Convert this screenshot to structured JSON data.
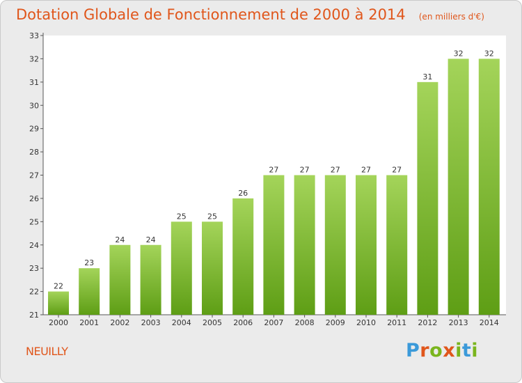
{
  "title": "Dotation Globale de Fonctionnement de 2000 à 2014",
  "unit_note": "(en milliers d'€)",
  "place_name": "NEUILLY",
  "brand": {
    "text": "Proxiti",
    "letter_colors": [
      "#3b9ad9",
      "#e0561b",
      "#7ab51d",
      "#e0561b",
      "#7ab51d",
      "#3b9ad9",
      "#7ab51d"
    ]
  },
  "colors": {
    "title": "#e0561b",
    "bar_light": "#a4d45a",
    "bar_dark": "#5e9e15",
    "background": "#ebebeb",
    "plot_background": "#ffffff"
  },
  "chart_data": {
    "type": "bar",
    "title": "Dotation Globale de Fonctionnement de 2000 à 2014",
    "categories": [
      "2000",
      "2001",
      "2002",
      "2003",
      "2004",
      "2005",
      "2006",
      "2007",
      "2008",
      "2009",
      "2010",
      "2011",
      "2012",
      "2013",
      "2014"
    ],
    "values": [
      22,
      23,
      24,
      24,
      25,
      25,
      26,
      27,
      27,
      27,
      27,
      27,
      31,
      32,
      32
    ],
    "ylim": [
      21,
      33
    ],
    "yticks": [
      21,
      22,
      23,
      24,
      25,
      26,
      27,
      28,
      29,
      30,
      31,
      32,
      33
    ],
    "grid": false,
    "data_labels": true
  }
}
